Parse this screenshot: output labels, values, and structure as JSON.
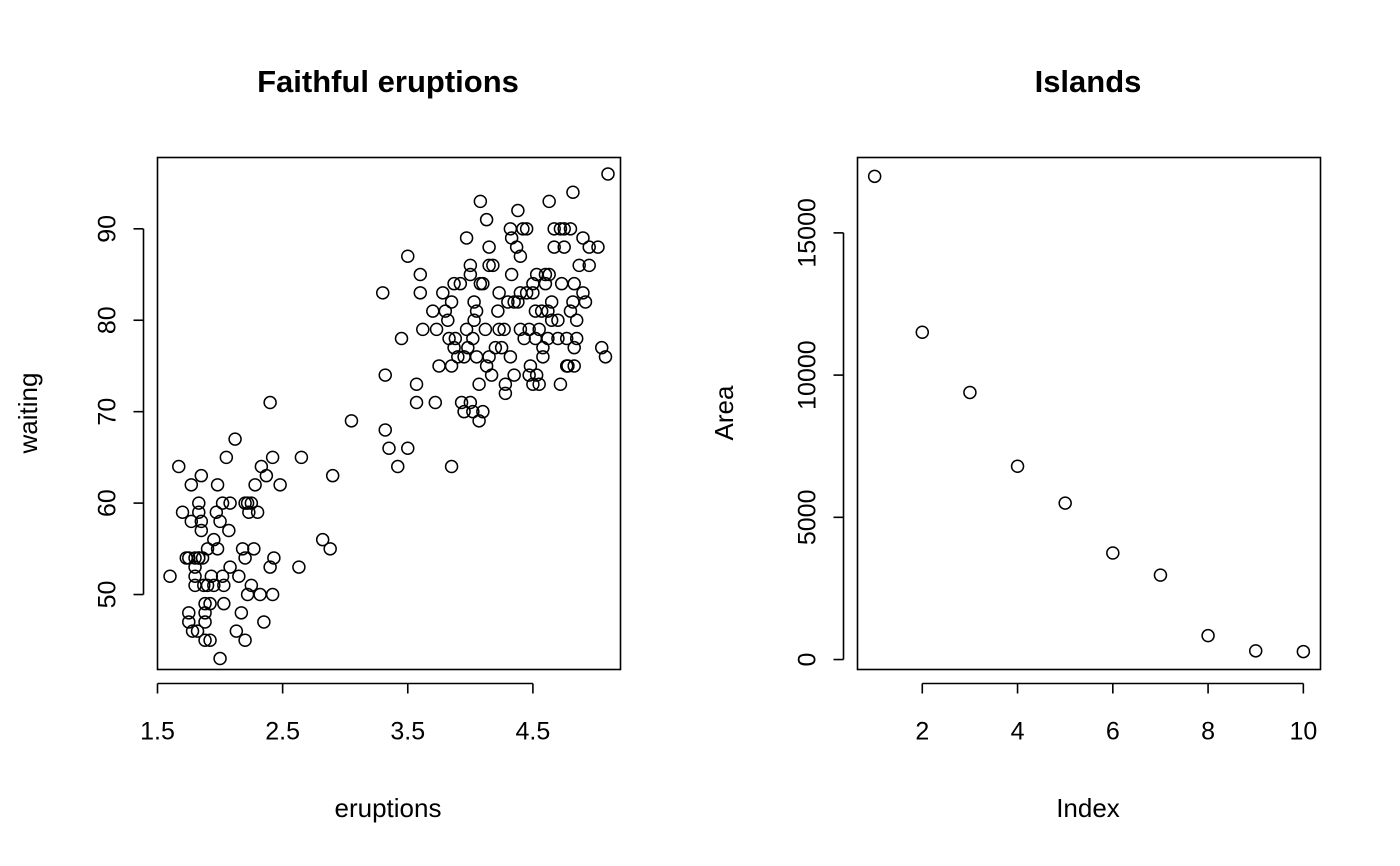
{
  "chart_data": [
    {
      "type": "scatter",
      "title": "Faithful eruptions",
      "xlabel": "eruptions",
      "ylabel": "waiting",
      "xticks": [
        "1.5",
        "2.5",
        "3.5",
        "4.5"
      ],
      "xtick_values": [
        1.5,
        2.5,
        3.5,
        4.5
      ],
      "yticks": [
        "50",
        "60",
        "70",
        "80",
        "90"
      ],
      "ytick_values": [
        50,
        60,
        70,
        80,
        90
      ],
      "xlim": [
        1.5,
        5.2
      ],
      "ylim": [
        41.8,
        97.8
      ],
      "grid": false,
      "points": [
        [
          1.6,
          52
        ],
        [
          1.67,
          64
        ],
        [
          1.7,
          59
        ],
        [
          1.73,
          54
        ],
        [
          1.75,
          54
        ],
        [
          1.75,
          48
        ],
        [
          1.75,
          47
        ],
        [
          1.77,
          62
        ],
        [
          1.77,
          58
        ],
        [
          1.78,
          46
        ],
        [
          1.8,
          52
        ],
        [
          1.8,
          51
        ],
        [
          1.8,
          53
        ],
        [
          1.8,
          54
        ],
        [
          1.82,
          46
        ],
        [
          1.83,
          60
        ],
        [
          1.83,
          59
        ],
        [
          1.83,
          54
        ],
        [
          1.83,
          54
        ],
        [
          1.85,
          63
        ],
        [
          1.85,
          57
        ],
        [
          1.85,
          58
        ],
        [
          1.86,
          54
        ],
        [
          1.87,
          51
        ],
        [
          1.88,
          48
        ],
        [
          1.88,
          45
        ],
        [
          1.88,
          49
        ],
        [
          1.88,
          47
        ],
        [
          1.9,
          55
        ],
        [
          1.9,
          51
        ],
        [
          1.92,
          45
        ],
        [
          1.92,
          49
        ],
        [
          1.93,
          52
        ],
        [
          1.95,
          56
        ],
        [
          1.95,
          51
        ],
        [
          1.97,
          59
        ],
        [
          1.98,
          55
        ],
        [
          1.98,
          62
        ],
        [
          2.0,
          43
        ],
        [
          2.0,
          58
        ],
        [
          2.02,
          60
        ],
        [
          2.02,
          52
        ],
        [
          2.03,
          49
        ],
        [
          2.03,
          51
        ],
        [
          2.05,
          65
        ],
        [
          2.07,
          57
        ],
        [
          2.08,
          53
        ],
        [
          2.08,
          60
        ],
        [
          2.12,
          67
        ],
        [
          2.13,
          46
        ],
        [
          2.15,
          52
        ],
        [
          2.17,
          48
        ],
        [
          2.18,
          55
        ],
        [
          2.2,
          45
        ],
        [
          2.2,
          60
        ],
        [
          2.2,
          54
        ],
        [
          2.22,
          50
        ],
        [
          2.22,
          60
        ],
        [
          2.23,
          59
        ],
        [
          2.25,
          51
        ],
        [
          2.25,
          60
        ],
        [
          2.27,
          55
        ],
        [
          2.28,
          62
        ],
        [
          2.3,
          59
        ],
        [
          2.32,
          50
        ],
        [
          2.33,
          64
        ],
        [
          2.35,
          47
        ],
        [
          2.37,
          63
        ],
        [
          2.4,
          71
        ],
        [
          2.4,
          53
        ],
        [
          2.42,
          65
        ],
        [
          2.42,
          50
        ],
        [
          2.43,
          54
        ],
        [
          2.48,
          62
        ],
        [
          2.63,
          53
        ],
        [
          2.65,
          65
        ],
        [
          2.82,
          56
        ],
        [
          2.88,
          55
        ],
        [
          2.9,
          63
        ],
        [
          3.05,
          69
        ],
        [
          3.3,
          83
        ],
        [
          3.32,
          74
        ],
        [
          3.32,
          68
        ],
        [
          3.35,
          66
        ],
        [
          3.42,
          64
        ],
        [
          3.45,
          78
        ],
        [
          3.5,
          87
        ],
        [
          3.5,
          66
        ],
        [
          3.57,
          73
        ],
        [
          3.57,
          71
        ],
        [
          3.6,
          85
        ],
        [
          3.6,
          83
        ],
        [
          3.62,
          79
        ],
        [
          3.7,
          81
        ],
        [
          3.72,
          71
        ],
        [
          3.73,
          79
        ],
        [
          3.75,
          75
        ],
        [
          3.78,
          83
        ],
        [
          3.8,
          81
        ],
        [
          3.82,
          80
        ],
        [
          3.83,
          78
        ],
        [
          3.85,
          82
        ],
        [
          3.85,
          75
        ],
        [
          3.85,
          64
        ],
        [
          3.87,
          84
        ],
        [
          3.87,
          77
        ],
        [
          3.88,
          78
        ],
        [
          3.9,
          76
        ],
        [
          3.92,
          84
        ],
        [
          3.93,
          71
        ],
        [
          3.95,
          70
        ],
        [
          3.95,
          76
        ],
        [
          3.97,
          79
        ],
        [
          3.97,
          89
        ],
        [
          3.98,
          77
        ],
        [
          4.0,
          71
        ],
        [
          4.0,
          86
        ],
        [
          4.0,
          85
        ],
        [
          4.02,
          70
        ],
        [
          4.02,
          78
        ],
        [
          4.03,
          82
        ],
        [
          4.03,
          80
        ],
        [
          4.05,
          81
        ],
        [
          4.05,
          76
        ],
        [
          4.07,
          73
        ],
        [
          4.07,
          69
        ],
        [
          4.08,
          93
        ],
        [
          4.08,
          84
        ],
        [
          4.1,
          70
        ],
        [
          4.1,
          84
        ],
        [
          4.12,
          79
        ],
        [
          4.13,
          91
        ],
        [
          4.13,
          75
        ],
        [
          4.15,
          88
        ],
        [
          4.15,
          76
        ],
        [
          4.15,
          86
        ],
        [
          4.17,
          74
        ],
        [
          4.18,
          86
        ],
        [
          4.2,
          77
        ],
        [
          4.22,
          81
        ],
        [
          4.23,
          83
        ],
        [
          4.23,
          79
        ],
        [
          4.25,
          77
        ],
        [
          4.27,
          79
        ],
        [
          4.28,
          72
        ],
        [
          4.28,
          73
        ],
        [
          4.3,
          82
        ],
        [
          4.32,
          90
        ],
        [
          4.32,
          76
        ],
        [
          4.33,
          89
        ],
        [
          4.33,
          85
        ],
        [
          4.35,
          82
        ],
        [
          4.35,
          74
        ],
        [
          4.37,
          88
        ],
        [
          4.38,
          82
        ],
        [
          4.38,
          92
        ],
        [
          4.4,
          83
        ],
        [
          4.4,
          79
        ],
        [
          4.4,
          87
        ],
        [
          4.42,
          90
        ],
        [
          4.43,
          78
        ],
        [
          4.45,
          83
        ],
        [
          4.45,
          90
        ],
        [
          4.47,
          74
        ],
        [
          4.47,
          79
        ],
        [
          4.48,
          75
        ],
        [
          4.5,
          73
        ],
        [
          4.5,
          83
        ],
        [
          4.5,
          84
        ],
        [
          4.52,
          81
        ],
        [
          4.52,
          78
        ],
        [
          4.53,
          85
        ],
        [
          4.53,
          74
        ],
        [
          4.55,
          73
        ],
        [
          4.55,
          79
        ],
        [
          4.57,
          81
        ],
        [
          4.58,
          76
        ],
        [
          4.58,
          77
        ],
        [
          4.6,
          84
        ],
        [
          4.6,
          85
        ],
        [
          4.62,
          78
        ],
        [
          4.62,
          81
        ],
        [
          4.63,
          93
        ],
        [
          4.63,
          85
        ],
        [
          4.65,
          80
        ],
        [
          4.65,
          82
        ],
        [
          4.67,
          88
        ],
        [
          4.67,
          90
        ],
        [
          4.7,
          78
        ],
        [
          4.7,
          80
        ],
        [
          4.72,
          73
        ],
        [
          4.72,
          90
        ],
        [
          4.73,
          84
        ],
        [
          4.75,
          88
        ],
        [
          4.75,
          90
        ],
        [
          4.77,
          78
        ],
        [
          4.77,
          75
        ],
        [
          4.78,
          75
        ],
        [
          4.8,
          90
        ],
        [
          4.8,
          81
        ],
        [
          4.82,
          94
        ],
        [
          4.82,
          82
        ],
        [
          4.83,
          75
        ],
        [
          4.83,
          84
        ],
        [
          4.83,
          77
        ],
        [
          4.85,
          78
        ],
        [
          4.85,
          80
        ],
        [
          4.87,
          86
        ],
        [
          4.9,
          83
        ],
        [
          4.9,
          89
        ],
        [
          4.92,
          82
        ],
        [
          4.95,
          88
        ],
        [
          4.95,
          86
        ],
        [
          5.02,
          88
        ],
        [
          5.05,
          77
        ],
        [
          5.08,
          76
        ],
        [
          5.1,
          96
        ]
      ]
    },
    {
      "type": "scatter",
      "title": "Islands",
      "xlabel": "Index",
      "ylabel": "Area",
      "xticks": [
        "2",
        "4",
        "6",
        "8",
        "10"
      ],
      "xtick_values": [
        2,
        4,
        6,
        8,
        10
      ],
      "yticks": [
        "0",
        "5000",
        "10000",
        "15000"
      ],
      "ytick_values": [
        0,
        5000,
        10000,
        15000
      ],
      "xlim": [
        0.64,
        10.36
      ],
      "ylim": [
        -350,
        17650
      ],
      "grid": false,
      "points": [
        [
          1,
          16988
        ],
        [
          2,
          11506
        ],
        [
          3,
          9390
        ],
        [
          4,
          6795
        ],
        [
          5,
          5500
        ],
        [
          6,
          3745
        ],
        [
          7,
          2968
        ],
        [
          8,
          840
        ],
        [
          9,
          306
        ],
        [
          10,
          280
        ]
      ]
    }
  ]
}
